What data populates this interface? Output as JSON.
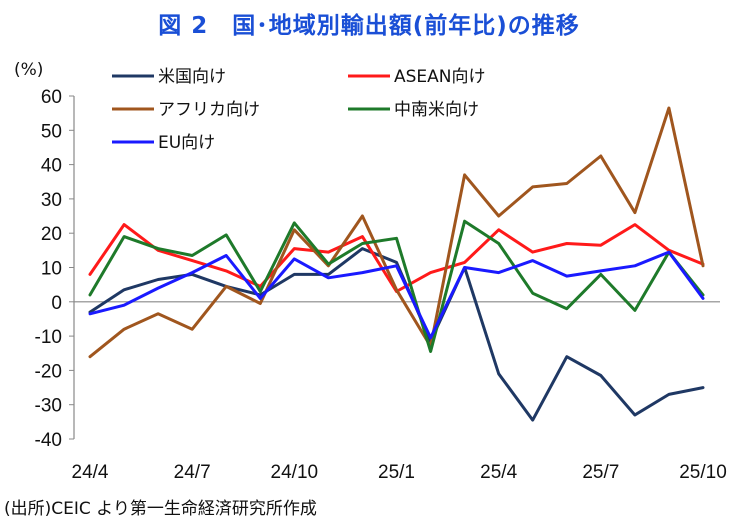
{
  "page": {
    "title": "図 2　国･地域別輸出額(前年比)の推移",
    "unit_label": "(%)",
    "source": "(出所)CEIC より第一生命経済研究所作成"
  },
  "chart_data": {
    "type": "line",
    "title": "図 2　国･地域別輸出額(前年比)の推移",
    "ylabel": "(%)",
    "xlabel": "",
    "ylim": [
      -40,
      60
    ],
    "yticks": [
      -40,
      -30,
      -20,
      -10,
      0,
      10,
      20,
      30,
      40,
      50,
      60
    ],
    "x": [
      "24/4",
      "24/5",
      "24/6",
      "24/7",
      "24/8",
      "24/9",
      "24/10",
      "24/11",
      "24/12",
      "25/1",
      "25/2",
      "25/3",
      "25/4",
      "25/5",
      "25/6",
      "25/7",
      "25/8",
      "25/9",
      "25/10"
    ],
    "xtick_labels": [
      "24/4",
      "24/7",
      "24/10",
      "25/1",
      "25/4",
      "25/7",
      "25/10"
    ],
    "grid": false,
    "legend_position": "top-left",
    "series": [
      {
        "name": "米国向け",
        "color": "#1f3864",
        "values": [
          -3,
          3.5,
          6.5,
          8,
          4.5,
          2,
          8,
          8,
          15.5,
          11.5,
          -11.5,
          10,
          -21,
          -34.5,
          -16,
          -21.5,
          -33,
          -27,
          -25
        ]
      },
      {
        "name": "ASEAN向け",
        "color": "#ff1a1a",
        "values": [
          8,
          22.5,
          15,
          12,
          9,
          4.5,
          15.5,
          14.5,
          19,
          3,
          8.5,
          11.5,
          21,
          14.5,
          17,
          16.5,
          22.5,
          15,
          11
        ]
      },
      {
        "name": "アフリカ向け",
        "color": "#a0561e",
        "values": [
          -16,
          -8,
          -3.5,
          -8,
          4.5,
          -0.5,
          21,
          10.5,
          25,
          3.5,
          -13,
          37,
          25,
          33.5,
          34.5,
          42.5,
          26,
          56.5,
          10.5
        ]
      },
      {
        "name": "中南米向け",
        "color": "#1e7a2a",
        "values": [
          2,
          19,
          15.5,
          13.5,
          19.5,
          3,
          23,
          11,
          17,
          18.5,
          -14.5,
          23.5,
          17,
          2.5,
          -2,
          8,
          -2.5,
          14.5,
          2
        ]
      },
      {
        "name": "EU向け",
        "color": "#1a1aff",
        "values": [
          -3.5,
          -1,
          4,
          8.5,
          13.5,
          1,
          12.5,
          7,
          8.5,
          10.5,
          -10.5,
          10,
          8.5,
          12,
          7.5,
          9,
          10.5,
          14.5,
          1
        ]
      }
    ]
  }
}
